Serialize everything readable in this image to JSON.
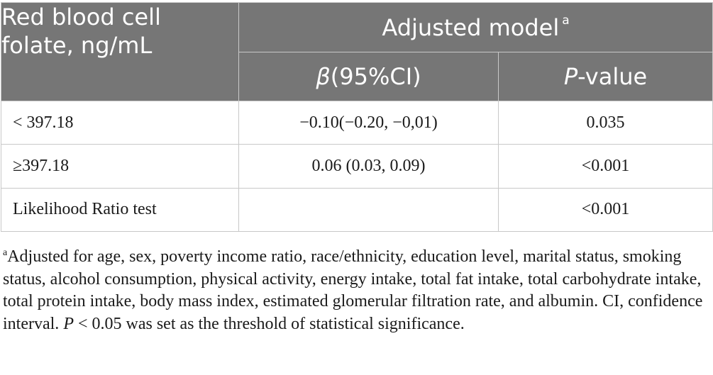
{
  "table": {
    "header": {
      "row_label": "Red blood cell folate, ng/mL",
      "group": "Adjusted model",
      "group_marker": "a",
      "col_beta_symbol": "β",
      "col_beta_rest": "(95%CI)",
      "col_p_symbol": "P",
      "col_p_rest": "-value"
    },
    "rows": [
      {
        "label": "< 397.18",
        "beta": "−0.10(−0.20, −0,01)",
        "p": "0.035"
      },
      {
        "label": "≥397.18",
        "beta": "0.06 (0.03, 0.09)",
        "p": "<0.001"
      },
      {
        "label": "Likelihood Ratio test",
        "beta": "",
        "p": "<0.001"
      }
    ]
  },
  "footnote": {
    "marker": "a",
    "text_main": "Adjusted for age, sex, poverty income ratio, race/ethnicity, education level, marital status, smoking status, alcohol consumption, physical activity, energy intake, total fat intake, total carbohydrate intake, total protein intake, body mass index, estimated glomerular filtration rate, and albumin. CI, confidence interval. ",
    "p_symbol": "P",
    "text_end": " < 0.05 was set as the threshold of statistical significance."
  }
}
